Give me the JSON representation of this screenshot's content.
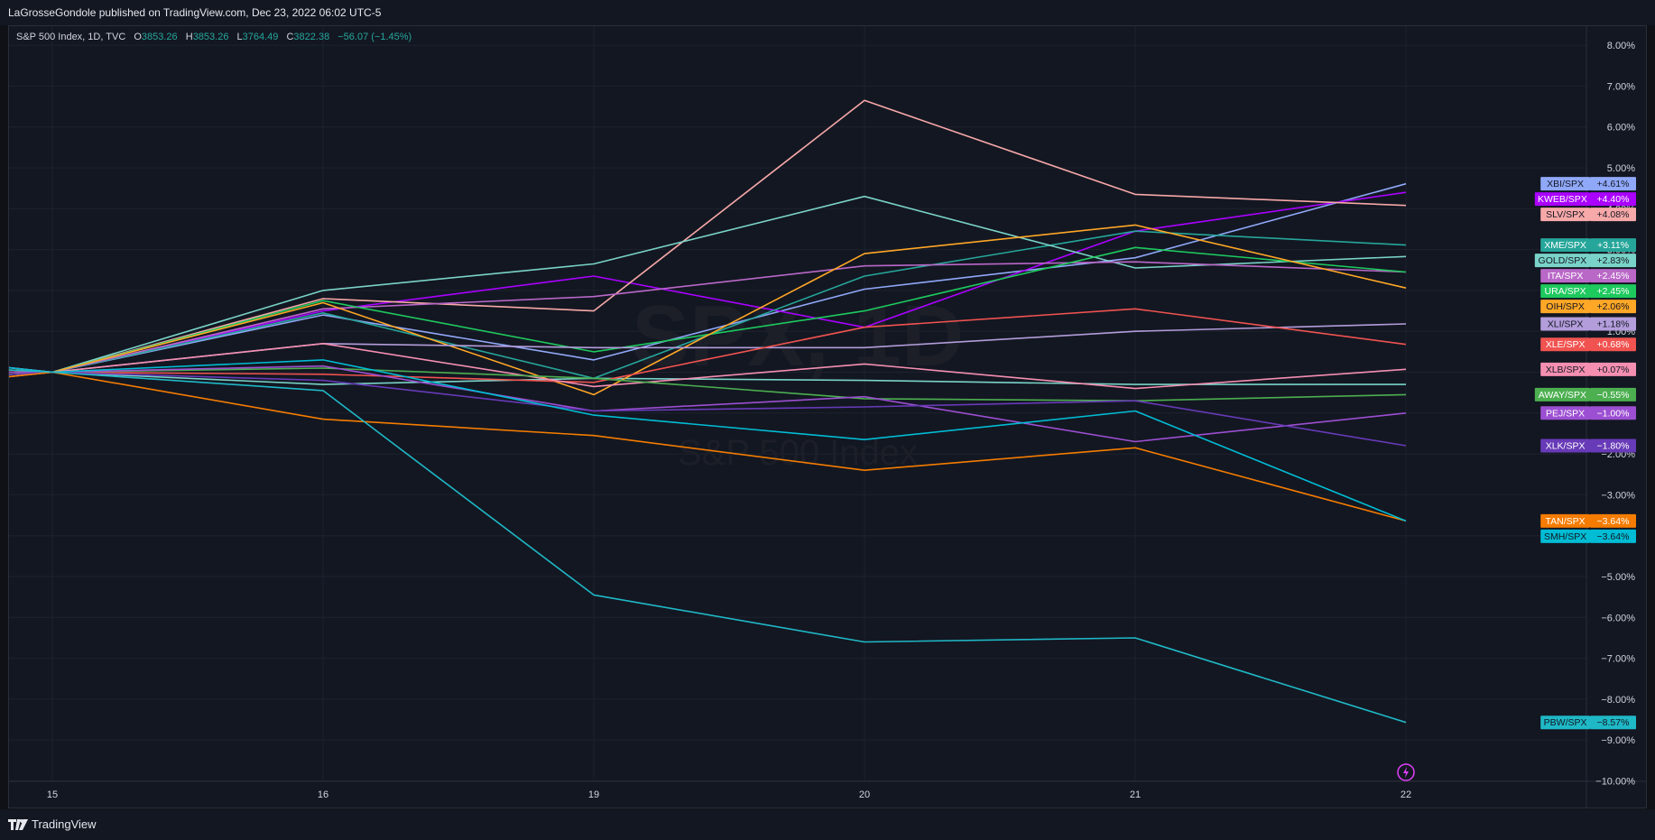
{
  "header": {
    "published": "LaGrosseGondole published on TradingView.com, Dec 23, 2022 06:02 UTC-5"
  },
  "legend": {
    "symbol": "S&P 500 Index, 1D, TVC",
    "o_label": "O",
    "o_value": "3853.26",
    "h_label": "H",
    "h_value": "3853.26",
    "l_label": "L",
    "l_value": "3764.49",
    "c_label": "C",
    "c_value": "3822.38",
    "change": "−56.07 (−1.45%)"
  },
  "watermark": {
    "symbol": "SPX, 1D",
    "name": "S&P 500 Index"
  },
  "brand": {
    "name": "TradingView"
  },
  "colors": {
    "background": "#131722",
    "grid": "#1e222d",
    "axis_text": "#d1d4dc"
  },
  "chart_data": {
    "type": "line",
    "x": [
      "15",
      "16",
      "19",
      "20",
      "21",
      "22"
    ],
    "y_unit": "%",
    "ylim": [
      -10,
      8.3
    ],
    "y_ticks": [
      "8.00%",
      "7.00%",
      "6.00%",
      "5.00%",
      "4.00%",
      "3.00%",
      "2.00%",
      "1.00%",
      "0.00%",
      "−1.00%",
      "−2.00%",
      "−3.00%",
      "−4.00%",
      "−5.00%",
      "−6.00%",
      "−7.00%",
      "−8.00%",
      "−9.00%",
      "−10.00%"
    ],
    "grid": true,
    "series": [
      {
        "name": "XBI/SPX",
        "color": "#90a8f8",
        "label": "+4.61%",
        "values": [
          0,
          1.4,
          0.3,
          2.03,
          2.8,
          4.61
        ]
      },
      {
        "name": "KWEB/SPX",
        "color": "#aa00ff",
        "label": "+4.40%",
        "values": [
          0,
          1.5,
          2.35,
          1.1,
          3.45,
          4.4
        ]
      },
      {
        "name": "SLV/SPX",
        "color": "#f7a8a8",
        "label": "+4.08%",
        "values": [
          0,
          1.8,
          1.5,
          6.65,
          4.35,
          4.08
        ]
      },
      {
        "name": "XME/SPX",
        "color": "#26a69a",
        "label": "+3.11%",
        "values": [
          0,
          1.45,
          -0.15,
          2.35,
          3.45,
          3.11
        ]
      },
      {
        "name": "GOLD/SPX",
        "color": "#7ad3c8",
        "label": "+2.83%",
        "values": [
          0,
          2.0,
          2.65,
          4.3,
          2.55,
          2.83
        ]
      },
      {
        "name": "ITA/SPX",
        "color": "#ba68c8",
        "label": "+2.45%",
        "values": [
          0,
          1.55,
          1.85,
          2.6,
          2.7,
          2.45
        ]
      },
      {
        "name": "URA/SPX",
        "color": "#1ec95e",
        "label": "+2.45%",
        "values": [
          0,
          1.75,
          0.5,
          1.5,
          3.05,
          2.45
        ]
      },
      {
        "name": "OIH/SPX",
        "color": "#ffa726",
        "label": "+2.06%",
        "values": [
          0,
          1.7,
          -0.55,
          2.9,
          3.6,
          2.06
        ]
      },
      {
        "name": "XLI/SPX",
        "color": "#b39ddb",
        "label": "+1.18%",
        "values": [
          0,
          0.7,
          0.6,
          0.6,
          1.0,
          1.18
        ]
      },
      {
        "name": "XLE/SPX",
        "color": "#f05350",
        "label": "+0.68%",
        "values": [
          0,
          -0.05,
          -0.25,
          1.1,
          1.55,
          0.68
        ]
      },
      {
        "name": "XLB/SPX",
        "color": "#f48fb1",
        "label": "+0.07%",
        "values": [
          0,
          0.7,
          -0.35,
          0.2,
          -0.4,
          0.07
        ]
      },
      {
        "name": "AWAY/SPX",
        "color": "#4caf50",
        "label": "−0.55%",
        "values": [
          0,
          0.1,
          -0.15,
          -0.65,
          -0.7,
          -0.55
        ]
      },
      {
        "name": "PEJ/SPX",
        "color": "#9c4fd2",
        "label": "−1.00%",
        "values": [
          0,
          0.15,
          -0.95,
          -0.6,
          -1.7,
          -1.0
        ]
      },
      {
        "name": "XLK/SPX",
        "color": "#673ab7",
        "label": "−1.80%",
        "values": [
          0,
          -0.2,
          -0.95,
          -0.85,
          -0.7,
          -1.8
        ]
      },
      {
        "name": "TAN/SPX",
        "color": "#f57c00",
        "label": "−3.64%",
        "values": [
          0,
          -1.15,
          -1.55,
          -2.4,
          -1.85,
          -3.64
        ]
      },
      {
        "name": "SMH/SPX",
        "color": "#00bcd4",
        "label": "−3.64%",
        "values": [
          0,
          0.3,
          -1.05,
          -1.65,
          -0.95,
          -3.64
        ]
      },
      {
        "name": "PBW/SPX",
        "color": "#1fb8c6",
        "label": "−8.57%",
        "values": [
          0,
          -0.45,
          -5.45,
          -6.6,
          -6.5,
          -8.57
        ]
      }
    ],
    "extra_lines": [
      {
        "color": "#7ad3c8",
        "values": [
          0,
          -0.3,
          -0.15,
          -0.2,
          -0.3,
          -0.3
        ]
      }
    ]
  }
}
